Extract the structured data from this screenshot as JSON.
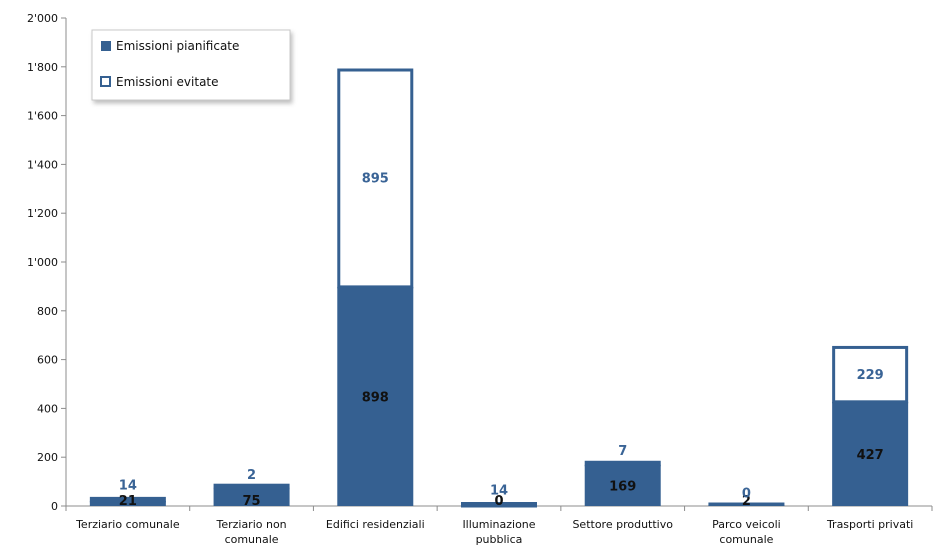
{
  "chart_data": {
    "type": "bar",
    "stacked": true,
    "categories": [
      [
        "Terziario comunale"
      ],
      [
        "Terziario non",
        "comunale"
      ],
      [
        "Edifici residenziali"
      ],
      [
        "Illuminazione",
        "pubblica"
      ],
      [
        "Settore produttivo"
      ],
      [
        "Parco veicoli",
        "comunale"
      ],
      [
        "Trasporti privati"
      ]
    ],
    "series": [
      {
        "name": "Emissioni pianificate",
        "values": [
          21,
          75,
          898,
          0,
          169,
          2,
          427
        ],
        "color": "#356091"
      },
      {
        "name": "Emissioni evitate",
        "values": [
          14,
          2,
          895,
          14,
          7,
          0,
          229
        ],
        "color": "#ffffff"
      }
    ],
    "ylim": [
      0,
      2000
    ],
    "yticks": [
      0,
      200,
      400,
      600,
      800,
      1000,
      1200,
      1400,
      1600,
      1800,
      2000
    ],
    "ytick_labels": [
      "0",
      "200",
      "400",
      "600",
      "800",
      "1'000",
      "1'200",
      "1'400",
      "1'600",
      "1'800",
      "2'000"
    ],
    "legend_position": "top-left",
    "grid": false,
    "title": "",
    "xlabel": "",
    "ylabel": ""
  }
}
